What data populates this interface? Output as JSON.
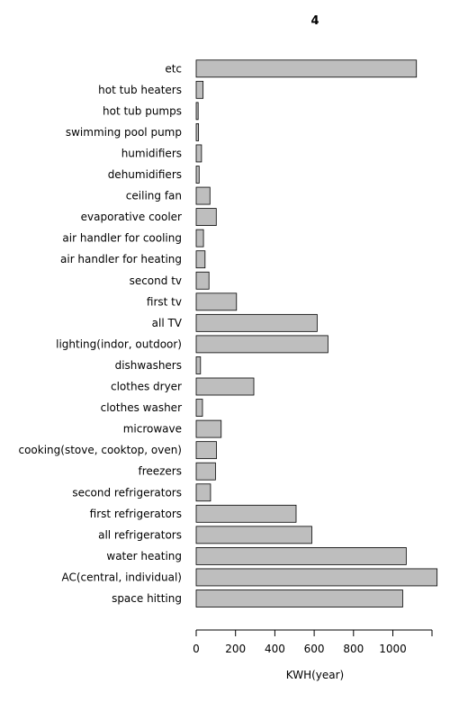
{
  "chart_data": {
    "type": "bar",
    "orientation": "horizontal",
    "title": "4",
    "xlabel": "KWH(year)",
    "ylabel": "",
    "xlim": [
      0,
      1200
    ],
    "xticks": [
      0,
      200,
      400,
      600,
      800,
      1000
    ],
    "grid": false,
    "bar_color": "#bebebe",
    "categories": [
      "space hitting",
      "AC(central, individual)",
      "water heating",
      "all refrigerators",
      "first refrigerators",
      "second refrigerators",
      "freezers",
      "cooking(stove, cooktop, oven)",
      "microwave",
      "clothes washer",
      "clothes dryer",
      "dishwashers",
      "lighting(indor, outdoor)",
      "all TV",
      "first tv",
      "second tv",
      "air handler for heating",
      "air handler for cooling",
      "evaporative cooler",
      "ceiling fan",
      "dehumidifiers",
      "humidifiers",
      "swimming pool pump",
      "hot tub pumps",
      "hot tub heaters",
      "etc"
    ],
    "values": [
      1050,
      1225,
      1068,
      588,
      508,
      73,
      98,
      103,
      127,
      32,
      293,
      22,
      670,
      615,
      205,
      65,
      45,
      37,
      102,
      70,
      15,
      27,
      12,
      10,
      35,
      1120
    ]
  }
}
